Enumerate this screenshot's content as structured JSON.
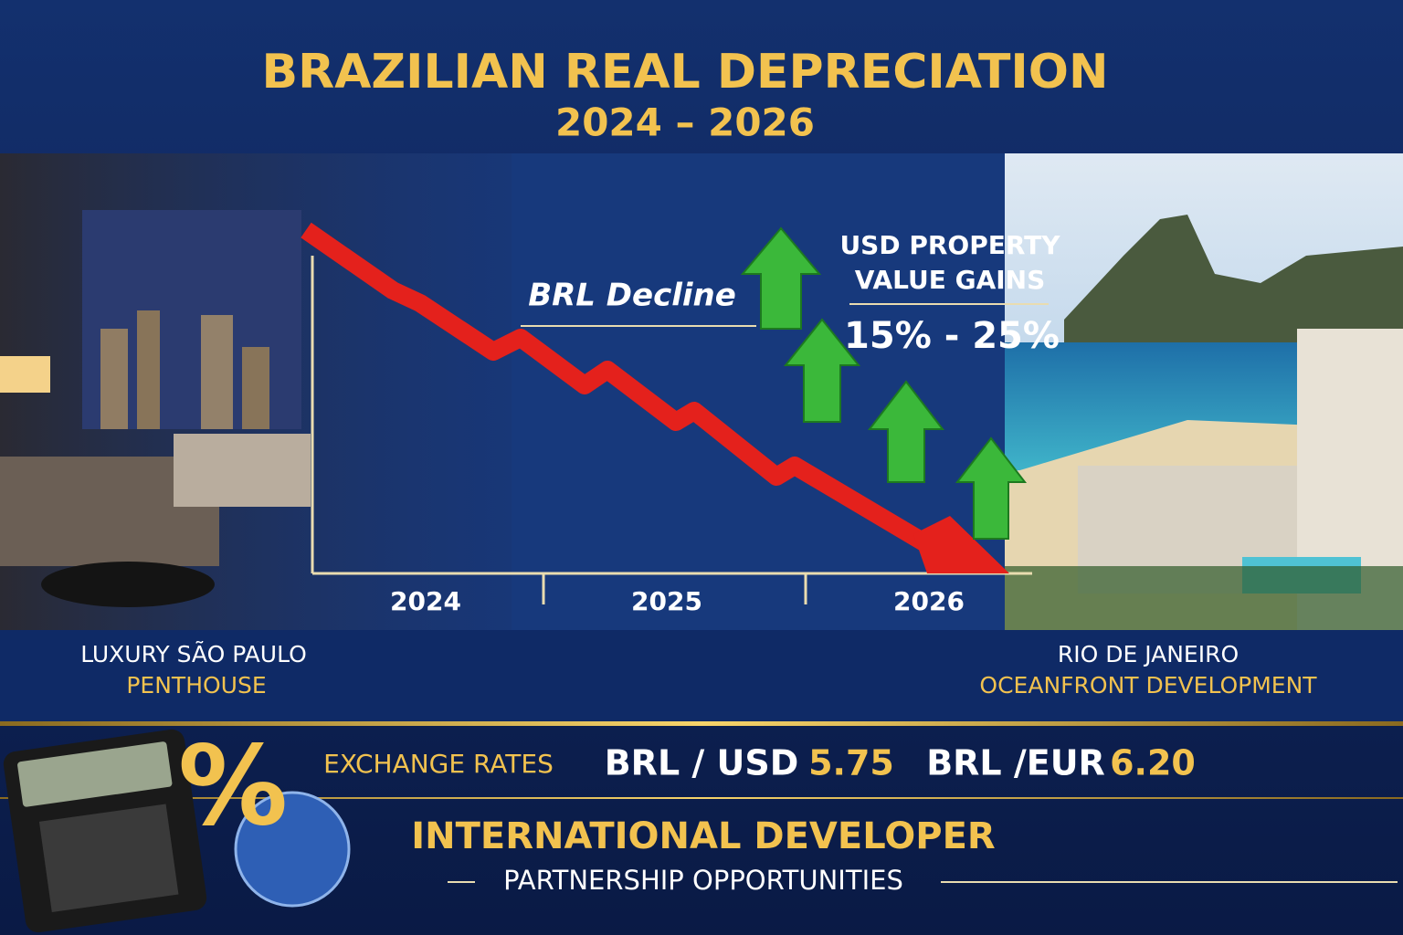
{
  "header": {
    "title": "BRAZILIAN REAL DEPRECIATION",
    "subtitle": "2024 – 2026"
  },
  "chart": {
    "decline_label": "BRL Decline",
    "gains_label": [
      "USD PROPERTY",
      "VALUE GAINS"
    ],
    "gains_range": "15% - 25%",
    "years": [
      "2024",
      "2025",
      "2026"
    ]
  },
  "captions": {
    "left": [
      "LUXURY SÃO PAULO",
      "PENTHOUSE"
    ],
    "right": [
      "RIO DE JANEIRO",
      "OCEANFRONT DEVELOPMENT"
    ]
  },
  "exchange": {
    "label": "EXCHANGE RATES",
    "pairs": [
      {
        "pair": "BRL / USD",
        "rate": "5.75"
      },
      {
        "pair": "BRL /EUR",
        "rate": "6.20"
      }
    ]
  },
  "footer": {
    "title": "INTERNATIONAL DEVELOPER",
    "subtitle": "PARTNERSHIP OPPORTUNITIES"
  }
}
